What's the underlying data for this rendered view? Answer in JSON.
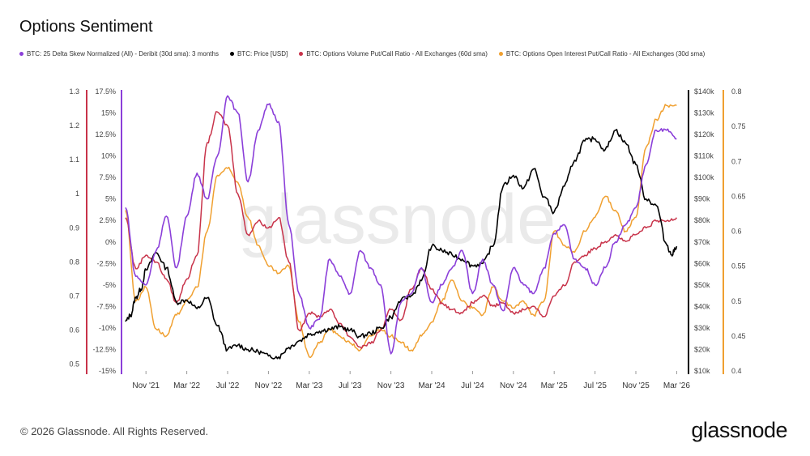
{
  "title": "Options Sentiment",
  "legend": [
    {
      "label": "BTC: 25 Delta Skew Normalized (All) - Deribit (30d sma): 3 months",
      "color": "#8b3fd9"
    },
    {
      "label": "BTC: Price [USD]",
      "color": "#000000"
    },
    {
      "label": "BTC: Options Volume Put/Call Ratio - All Exchanges (60d sma)",
      "color": "#c8334a"
    },
    {
      "label": "BTC: Options Open Interest Put/Call Ratio - All Exchanges (30d sma)",
      "color": "#f0a030"
    }
  ],
  "watermark": "glassnode",
  "copyright": "© 2026 Glassnode. All Rights Reserved.",
  "brand": "glassnode",
  "chart_data": {
    "type": "line",
    "x_ticks": [
      "Nov '21",
      "Mar '22",
      "Jul '22",
      "Nov '22",
      "Mar '23",
      "Jul '23",
      "Nov '23",
      "Mar '24",
      "Jul '24",
      "Nov '24",
      "Mar '25",
      "Jul '25",
      "Nov '25",
      "Mar '26"
    ],
    "x_tick_t": [
      1,
      5,
      9,
      13,
      17,
      21,
      25,
      29,
      33,
      37,
      41,
      45,
      49,
      53
    ],
    "x_range": [
      -1,
      54
    ],
    "axes": {
      "volume_pcr": {
        "ticks": [
          0.5,
          0.6,
          0.7,
          0.8,
          0.9,
          1,
          1.1,
          1.2,
          1.3
        ],
        "range": [
          0.48,
          1.3
        ],
        "color": "#c8334a"
      },
      "skew": {
        "ticks": [
          "-15%",
          "-12.5%",
          "-10%",
          "-7.5%",
          "-5%",
          "-2.5%",
          "0%",
          "2.5%",
          "5%",
          "7.5%",
          "10%",
          "12.5%",
          "15%",
          "17.5%"
        ],
        "range": [
          -15,
          17.5
        ],
        "color": "#8b3fd9"
      },
      "price": {
        "ticks": [
          "$10k",
          "$20k",
          "$30k",
          "$40k",
          "$50k",
          "$60k",
          "$70k",
          "$80k",
          "$90k",
          "$100k",
          "$110k",
          "$120k",
          "$130k",
          "$140k"
        ],
        "range": [
          10000,
          140000
        ],
        "color": "#000000"
      },
      "oi_pcr": {
        "ticks": [
          "0.4",
          "0.45",
          "0.5",
          "0.55",
          "0.6",
          "0.65",
          "0.7",
          "0.75",
          "0.8"
        ],
        "range": [
          0.4,
          0.8
        ],
        "color": "#f0a030"
      }
    },
    "series": [
      {
        "name": "BTC: Price [USD]",
        "axis": "price",
        "color": "#000000",
        "t": [
          -1,
          -0.5,
          0,
          0.5,
          1,
          2,
          3,
          4,
          5,
          6,
          7,
          8,
          9,
          10,
          11,
          12,
          13,
          14,
          15,
          16,
          17,
          18,
          19,
          20,
          21,
          22,
          23,
          24,
          25,
          26,
          27,
          28,
          29,
          30,
          31,
          32,
          33,
          34,
          35,
          36,
          37,
          38,
          39,
          40,
          41,
          42,
          43,
          44,
          45,
          46,
          47,
          48,
          49,
          50,
          51,
          52,
          52.5,
          53
        ],
        "values": [
          33000,
          36000,
          44000,
          48000,
          57000,
          65000,
          58000,
          42000,
          43000,
          39000,
          44000,
          31000,
          20000,
          22000,
          20000,
          19000,
          17000,
          16500,
          21000,
          24000,
          27000,
          28500,
          29500,
          30500,
          29000,
          26000,
          27500,
          30000,
          35000,
          43000,
          45000,
          52000,
          68000,
          66000,
          64000,
          62000,
          59000,
          60000,
          68000,
          96000,
          101000,
          95000,
          104000,
          91000,
          84000,
          96000,
          108000,
          117000,
          118000,
          113000,
          122000,
          116000,
          106000,
          90000,
          87000,
          69000,
          64000,
          68000
        ]
      },
      {
        "name": "BTC: 25 Delta Skew Normalized (All) - Deribit (30d sma): 3 months",
        "axis": "skew",
        "color": "#8b3fd9",
        "t": [
          -1,
          0,
          1,
          2,
          3,
          4,
          5,
          6,
          7,
          8,
          9,
          10,
          11,
          12,
          13,
          14,
          15,
          16,
          17,
          18,
          19,
          20,
          21,
          22,
          23,
          24,
          25,
          26,
          27,
          28,
          29,
          30,
          31,
          32,
          33,
          34,
          35,
          36,
          37,
          38,
          39,
          40,
          41,
          42,
          43,
          44,
          45,
          46,
          47,
          48,
          49,
          50,
          51,
          52,
          53
        ],
        "values": [
          4,
          -4,
          -5,
          -1,
          3,
          -3,
          3,
          8,
          5,
          10,
          17,
          15,
          7,
          13,
          16,
          14,
          2,
          -6,
          -10,
          -9,
          -2,
          -4,
          -6,
          -1,
          -3,
          -5,
          -13,
          -7,
          -6,
          -3,
          -7,
          -5,
          -3,
          -1,
          -6,
          -2,
          -5,
          -8,
          -3,
          -5,
          -6,
          -3,
          1,
          2,
          -2,
          -3,
          -5,
          -3,
          0,
          2,
          4,
          9,
          13,
          13,
          12
        ]
      },
      {
        "name": "BTC: Options Volume Put/Call Ratio - All Exchanges (60d sma)",
        "axis": "volume_pcr",
        "color": "#c8334a",
        "t": [
          -1,
          0,
          1,
          2,
          3,
          4,
          5,
          6,
          7,
          8,
          9,
          10,
          11,
          12,
          13,
          14,
          15,
          16,
          17,
          18,
          19,
          20,
          21,
          22,
          23,
          24,
          25,
          26,
          27,
          28,
          29,
          30,
          31,
          32,
          33,
          34,
          35,
          36,
          37,
          38,
          39,
          40,
          41,
          42,
          43,
          44,
          45,
          46,
          47,
          48,
          49,
          50,
          51,
          52,
          53
        ],
        "values": [
          0.93,
          0.78,
          0.82,
          0.8,
          0.75,
          0.68,
          0.75,
          0.82,
          1.15,
          1.24,
          1.2,
          1.0,
          0.88,
          0.92,
          0.9,
          0.93,
          0.8,
          0.6,
          0.65,
          0.64,
          0.66,
          0.62,
          0.58,
          0.55,
          0.56,
          0.6,
          0.66,
          0.63,
          0.72,
          0.78,
          0.72,
          0.68,
          0.66,
          0.65,
          0.68,
          0.7,
          0.67,
          0.68,
          0.65,
          0.66,
          0.67,
          0.64,
          0.7,
          0.73,
          0.8,
          0.82,
          0.84,
          0.86,
          0.88,
          0.86,
          0.88,
          0.9,
          0.92,
          0.92,
          0.93
        ]
      },
      {
        "name": "BTC: Options Open Interest Put/Call Ratio - All Exchanges (30d sma)",
        "axis": "oi_pcr",
        "color": "#f0a030",
        "t": [
          -1,
          0,
          1,
          2,
          3,
          4,
          5,
          6,
          7,
          8,
          9,
          10,
          11,
          12,
          13,
          14,
          15,
          16,
          17,
          18,
          19,
          20,
          21,
          22,
          23,
          24,
          25,
          26,
          27,
          28,
          29,
          30,
          31,
          32,
          33,
          34,
          35,
          36,
          37,
          38,
          39,
          40,
          41,
          42,
          43,
          44,
          45,
          46,
          47,
          48,
          49,
          50,
          51,
          52,
          53
        ],
        "values": [
          0.63,
          0.5,
          0.52,
          0.46,
          0.45,
          0.48,
          0.5,
          0.52,
          0.6,
          0.68,
          0.69,
          0.67,
          0.62,
          0.58,
          0.55,
          0.54,
          0.55,
          0.47,
          0.42,
          0.44,
          0.46,
          0.45,
          0.44,
          0.43,
          0.45,
          0.46,
          0.45,
          0.44,
          0.43,
          0.45,
          0.47,
          0.5,
          0.53,
          0.5,
          0.49,
          0.48,
          0.52,
          0.5,
          0.49,
          0.5,
          0.48,
          0.5,
          0.6,
          0.58,
          0.57,
          0.6,
          0.62,
          0.65,
          0.63,
          0.6,
          0.62,
          0.72,
          0.76,
          0.78,
          0.78
        ]
      }
    ]
  }
}
